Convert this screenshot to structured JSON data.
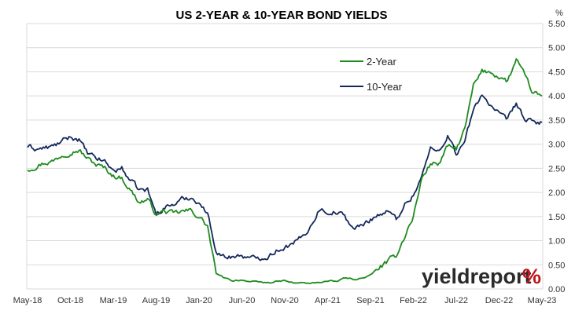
{
  "chart_data": {
    "type": "line",
    "title": "US 2-YEAR & 10-YEAR BOND YIELDS",
    "ylabel": "%",
    "xlabel": "",
    "ylim": [
      0,
      5.5
    ],
    "y_ticks": [
      "0.00",
      "0.50",
      "1.00",
      "1.50",
      "2.00",
      "2.50",
      "3.00",
      "3.50",
      "4.00",
      "4.50",
      "5.00",
      "5.50"
    ],
    "x_ticks": [
      "May-18",
      "Oct-18",
      "Mar-19",
      "Aug-19",
      "Jan-20",
      "Jun-20",
      "Nov-20",
      "Apr-21",
      "Sep-21",
      "Feb-22",
      "Jul-22",
      "Dec-22",
      "May-23"
    ],
    "grid": true,
    "legend_position": "top-right inside plot",
    "x": [
      "May-18",
      "Jun-18",
      "Jul-18",
      "Aug-18",
      "Sep-18",
      "Oct-18",
      "Nov-18",
      "Dec-18",
      "Jan-19",
      "Feb-19",
      "Mar-19",
      "Apr-19",
      "May-19",
      "Jun-19",
      "Jul-19",
      "Aug-19",
      "Sep-19",
      "Oct-19",
      "Nov-19",
      "Dec-19",
      "Jan-20",
      "Feb-20",
      "Mar-20",
      "Apr-20",
      "May-20",
      "Jun-20",
      "Jul-20",
      "Aug-20",
      "Sep-20",
      "Oct-20",
      "Nov-20",
      "Dec-20",
      "Jan-21",
      "Feb-21",
      "Mar-21",
      "Apr-21",
      "May-21",
      "Jun-21",
      "Jul-21",
      "Aug-21",
      "Sep-21",
      "Oct-21",
      "Nov-21",
      "Dec-21",
      "Jan-22",
      "Feb-22",
      "Mar-22",
      "Apr-22",
      "May-22",
      "Jun-22",
      "Jul-22",
      "Aug-22",
      "Sep-22",
      "Oct-22",
      "Nov-22",
      "Dec-22",
      "Jan-23",
      "Feb-23",
      "Mar-23",
      "Apr-23",
      "May-23"
    ],
    "series": [
      {
        "name": "2-Year",
        "color": "#1e8c1e",
        "values": [
          2.48,
          2.55,
          2.62,
          2.65,
          2.78,
          2.85,
          2.88,
          2.7,
          2.58,
          2.5,
          2.35,
          2.3,
          2.05,
          1.8,
          1.85,
          1.55,
          1.62,
          1.55,
          1.6,
          1.62,
          1.5,
          1.3,
          0.3,
          0.22,
          0.17,
          0.19,
          0.15,
          0.14,
          0.13,
          0.15,
          0.17,
          0.12,
          0.13,
          0.11,
          0.14,
          0.16,
          0.15,
          0.23,
          0.2,
          0.22,
          0.28,
          0.45,
          0.55,
          0.7,
          1.1,
          1.5,
          2.3,
          2.6,
          2.6,
          2.95,
          2.9,
          3.3,
          4.2,
          4.5,
          4.5,
          4.4,
          4.3,
          4.75,
          4.4,
          4.05,
          4.0
        ]
      },
      {
        "name": "10-Year",
        "color": "#14285a",
        "values": [
          2.95,
          2.9,
          2.92,
          2.95,
          3.05,
          3.15,
          3.1,
          2.8,
          2.7,
          2.65,
          2.45,
          2.5,
          2.25,
          2.05,
          2.05,
          1.55,
          1.7,
          1.75,
          1.85,
          1.9,
          1.8,
          1.55,
          0.8,
          0.65,
          0.68,
          0.7,
          0.62,
          0.65,
          0.68,
          0.8,
          0.88,
          0.92,
          1.08,
          1.3,
          1.65,
          1.6,
          1.6,
          1.5,
          1.25,
          1.3,
          1.45,
          1.55,
          1.6,
          1.45,
          1.75,
          1.95,
          2.35,
          2.9,
          2.85,
          3.2,
          2.8,
          3.05,
          3.7,
          4.05,
          3.8,
          3.6,
          3.5,
          3.85,
          3.5,
          3.45,
          3.45
        ]
      }
    ],
    "brand": {
      "word": "yieldreport",
      "symbol": "%",
      "color_text": "#2b2b2b",
      "color_symbol": "#c0151c"
    }
  }
}
